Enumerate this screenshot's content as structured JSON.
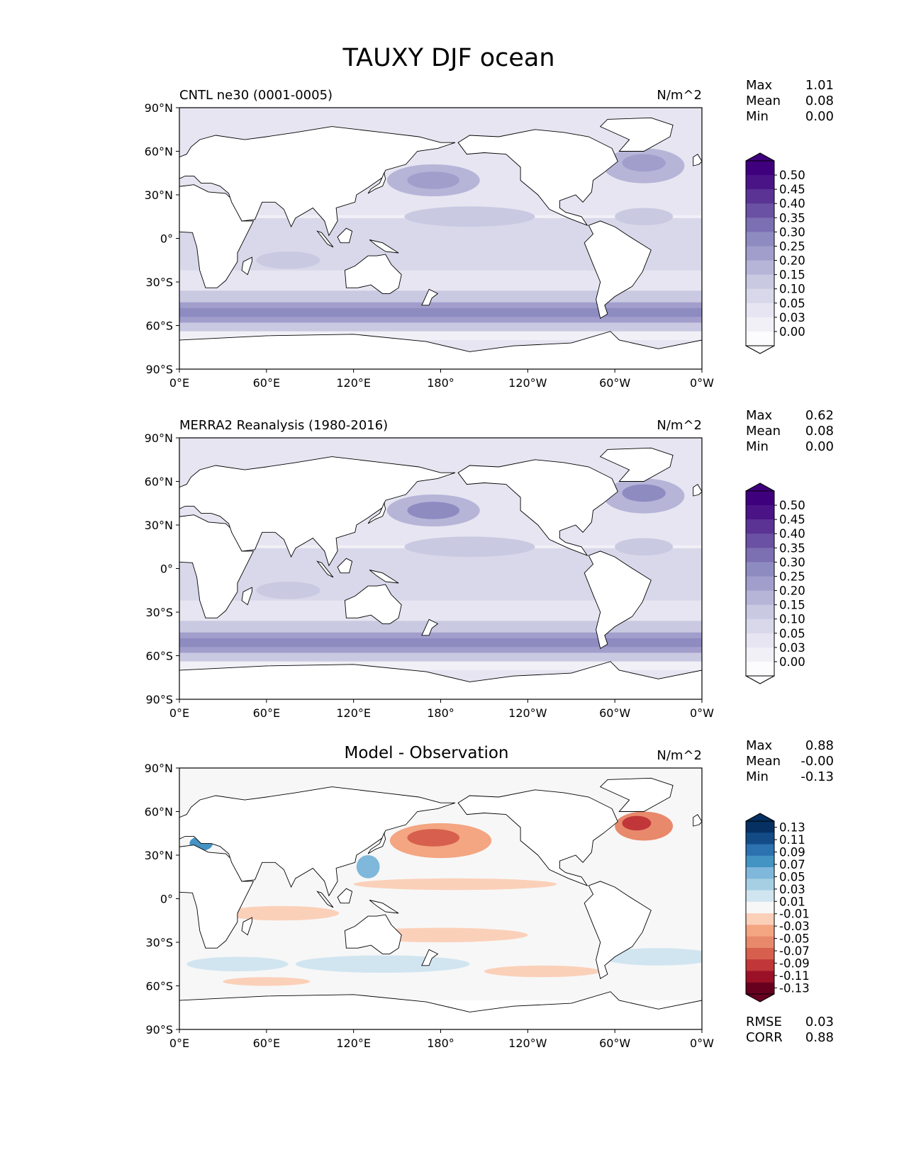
{
  "figure": {
    "title": "TAUXY DJF ocean"
  },
  "axes": {
    "lat_ticks": [
      "90°N",
      "60°N",
      "30°N",
      "0°",
      "30°S",
      "60°S",
      "90°S"
    ],
    "lon_ticks": [
      "0°E",
      "60°E",
      "120°E",
      "180°",
      "120°W",
      "60°W",
      "0°W"
    ]
  },
  "colors": {
    "seq_purples": [
      "#fcfbfd",
      "#f2f0f7",
      "#e6e5f1",
      "#d9d8ea",
      "#c9c9e2",
      "#b6b5d8",
      "#a19ecc",
      "#8e8bc1",
      "#7c6fb2",
      "#6a51a3",
      "#5b3395",
      "#4a1486",
      "#3f007d"
    ],
    "div_rdbu": [
      "#67001f",
      "#9a1127",
      "#c13639",
      "#d6604d",
      "#e8896c",
      "#f4a582",
      "#fbd0b9",
      "#f7f7f7",
      "#d1e5f0",
      "#a6cfe4",
      "#7fb8da",
      "#4393c3",
      "#2c71b0",
      "#134b87",
      "#053061"
    ],
    "land_outline": "#000000"
  },
  "chart_data": [
    {
      "type": "heatmap",
      "panel": "test",
      "title": "CNTL ne30 (0001-0005)",
      "units": "N/m^2",
      "stats": [
        {
          "label": "Max",
          "value": "1.01"
        },
        {
          "label": "Mean",
          "value": "0.08"
        },
        {
          "label": "Min",
          "value": "0.00"
        }
      ],
      "colorbar_levels": [
        "0.00",
        "0.03",
        "0.05",
        "0.10",
        "0.15",
        "0.20",
        "0.25",
        "0.30",
        "0.35",
        "0.40",
        "0.45",
        "0.50"
      ],
      "xlim": [
        0,
        360
      ],
      "ylim": [
        -90,
        90
      ]
    },
    {
      "type": "heatmap",
      "panel": "reference",
      "title": "MERRA2 Reanalysis (1980-2016)",
      "units": "N/m^2",
      "stats": [
        {
          "label": "Max",
          "value": "0.62"
        },
        {
          "label": "Mean",
          "value": "0.08"
        },
        {
          "label": "Min",
          "value": "0.00"
        }
      ],
      "colorbar_levels": [
        "0.00",
        "0.03",
        "0.05",
        "0.10",
        "0.15",
        "0.20",
        "0.25",
        "0.30",
        "0.35",
        "0.40",
        "0.45",
        "0.50"
      ],
      "xlim": [
        0,
        360
      ],
      "ylim": [
        -90,
        90
      ]
    },
    {
      "type": "heatmap",
      "panel": "difference",
      "title": "Model - Observation",
      "units": "N/m^2",
      "stats": [
        {
          "label": "Max",
          "value": "0.88"
        },
        {
          "label": "Mean",
          "value": "-0.00"
        },
        {
          "label": "Min",
          "value": "-0.13"
        }
      ],
      "colorbar_levels": [
        "-0.13",
        "-0.11",
        "-0.09",
        "-0.07",
        "-0.05",
        "-0.03",
        "-0.01",
        "0.01",
        "0.03",
        "0.05",
        "0.07",
        "0.09",
        "0.11",
        "0.13"
      ],
      "metrics": [
        {
          "label": "RMSE",
          "value": "0.03"
        },
        {
          "label": "CORR",
          "value": "0.88"
        }
      ],
      "xlim": [
        0,
        360
      ],
      "ylim": [
        -90,
        90
      ]
    }
  ]
}
